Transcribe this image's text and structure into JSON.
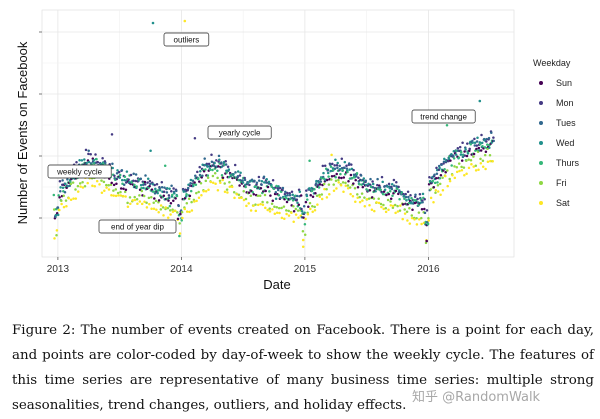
{
  "chart_data": {
    "type": "scatter",
    "title": "",
    "xlabel": "Date",
    "ylabel": "Number of Events on Facebook",
    "xlim": [
      "2012-11-15",
      "2016-09-10"
    ],
    "x_ticks": [
      "2013",
      "2014",
      "2015",
      "2016"
    ],
    "y_ticks_labels": [],
    "grid": true,
    "legend_position": "right",
    "legend_title": "Weekday",
    "series": [
      {
        "name": "Sun",
        "color": "#440154"
      },
      {
        "name": "Mon",
        "color": "#443A83"
      },
      {
        "name": "Tues",
        "color": "#31688E"
      },
      {
        "name": "Wed",
        "color": "#21908C"
      },
      {
        "name": "Thurs",
        "color": "#35B779"
      },
      {
        "name": "Fri",
        "color": "#8FD744"
      },
      {
        "name": "Sat",
        "color": "#FDE725"
      }
    ],
    "annotations": [
      {
        "text": "outliers"
      },
      {
        "text": "yearly cycle"
      },
      {
        "text": "trend change"
      },
      {
        "text": "weekly cycle"
      },
      {
        "text": "end of year dip"
      }
    ]
  },
  "caption": "Figure 2: The number of events created on Facebook. There is a point for each day, and points are color-coded by day-of-week to show the weekly cycle. The features of this time series are representative of many business time series: multiple strong seasonalities, trend changes, outliers, and holiday effects.",
  "watermark": "知乎 @RandomWalk"
}
